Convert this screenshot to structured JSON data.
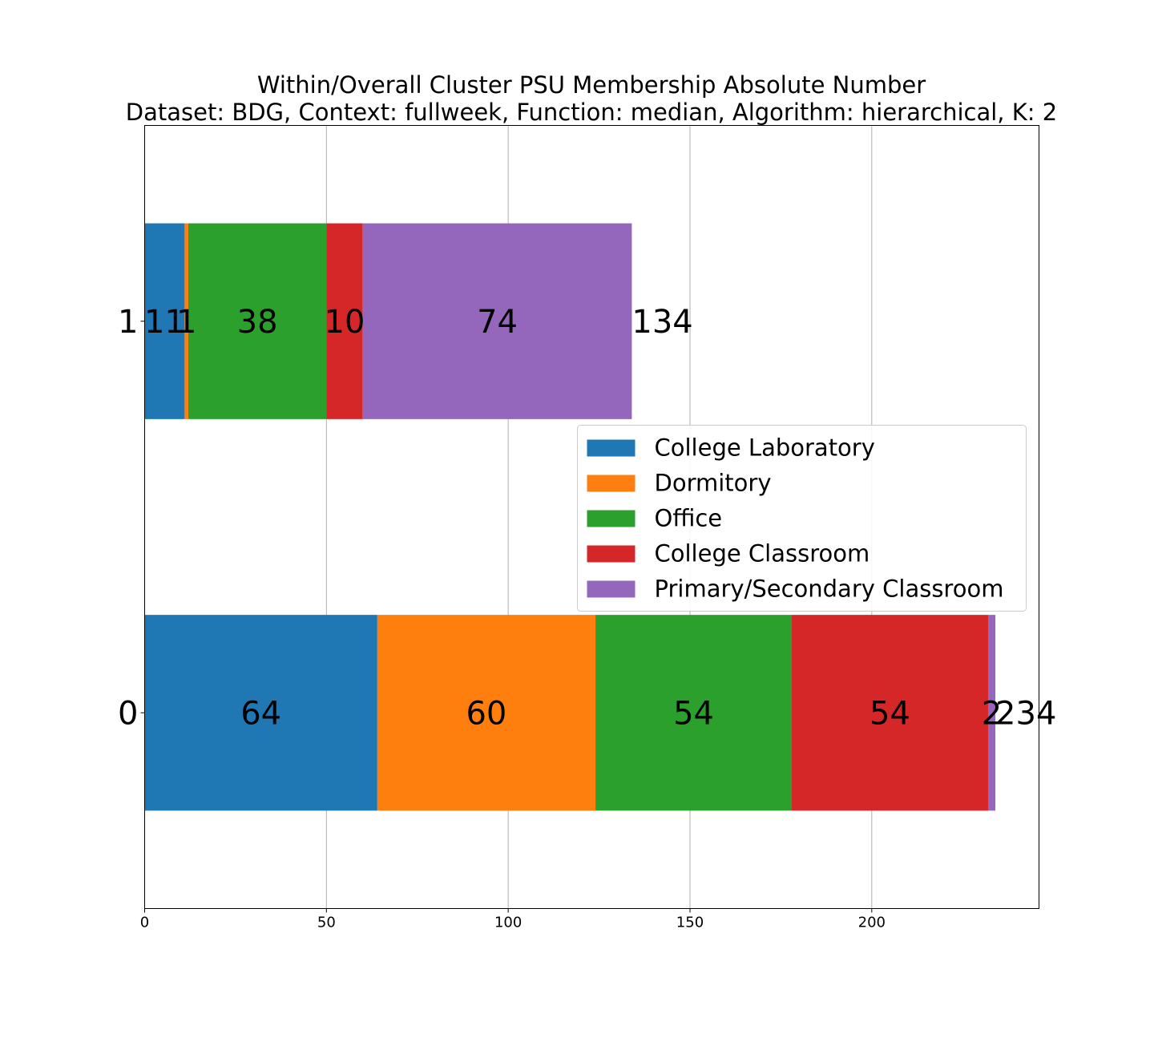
{
  "chart_data": {
    "type": "bar",
    "orientation": "horizontal",
    "stacked": true,
    "title": "Within/Overall Cluster PSU Membership Absolute Number",
    "subtitle": "Dataset: BDG, Context: fullweek, Function: median, Algorithm: hierarchical, K: 2",
    "xlabel": "",
    "ylabel": "",
    "categories": [
      "0",
      "1"
    ],
    "series": [
      {
        "name": "College Laboratory",
        "values": [
          64,
          11
        ],
        "color": "#1f77b4"
      },
      {
        "name": "Dormitory",
        "values": [
          60,
          1
        ],
        "color": "#ff7f0e"
      },
      {
        "name": "Office",
        "values": [
          54,
          38
        ],
        "color": "#2ca02c"
      },
      {
        "name": "College Classroom",
        "values": [
          54,
          10
        ],
        "color": "#d62728"
      },
      {
        "name": "Primary/Secondary Classroom",
        "values": [
          2,
          74
        ],
        "color": "#9467bd"
      }
    ],
    "totals": [
      234,
      134
    ],
    "xlim": [
      0,
      246
    ],
    "xticks": [
      0,
      50,
      100,
      150,
      200
    ],
    "xtick_labels": [
      "0",
      "50",
      "100",
      "150",
      "200"
    ],
    "grid": {
      "x": true,
      "y": false
    },
    "legend_position": "center-right"
  }
}
